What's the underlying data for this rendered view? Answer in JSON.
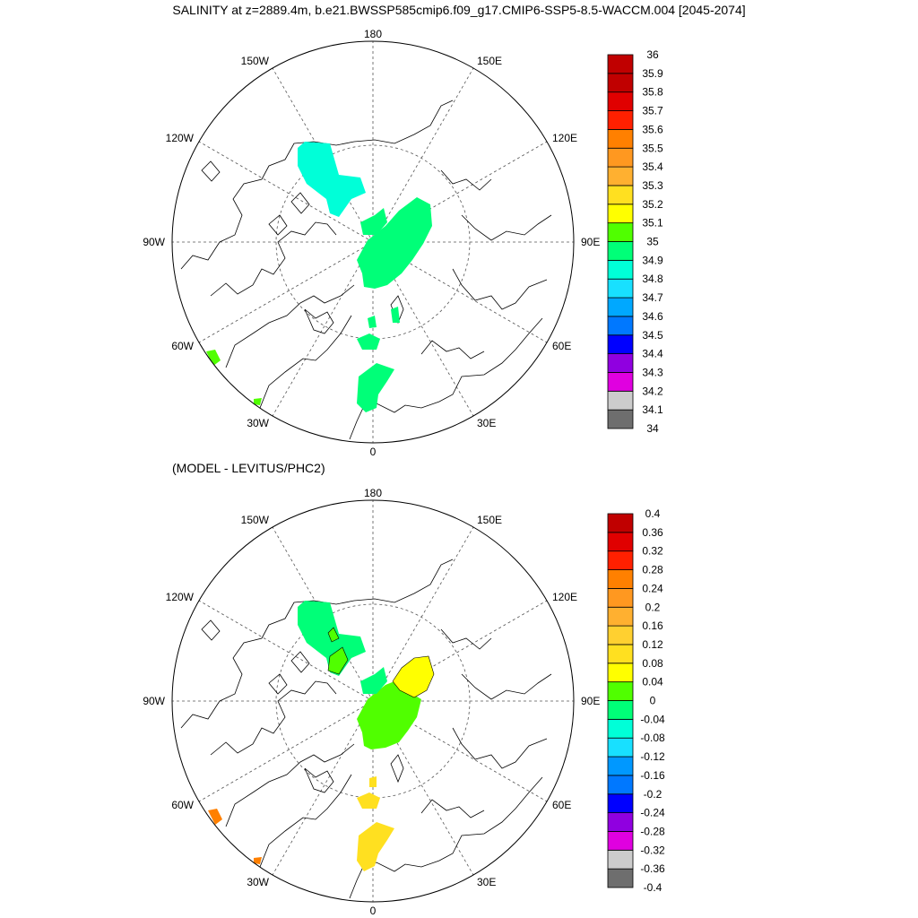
{
  "title": "SALINITY at z=2889.4m, b.e21.BWSSP585cmip6.f09_g17.CMIP6-SSP5-8.5-WACCM.004 [2045-2074]",
  "diff_title": "(MODEL - LEVITUS/PHC2)",
  "longitude_labels": {
    "top": "180",
    "bottom": "0",
    "left": "90W",
    "right": "90E",
    "upper_left_1": "150W",
    "upper_left_2": "120W",
    "lower_left_1": "60W",
    "lower_left_2": "30W",
    "upper_right_1": "150E",
    "upper_right_2": "120E",
    "lower_right_1": "60E",
    "lower_right_2": "30E"
  },
  "colors": {
    "palette_top": [
      "#6e6e6e",
      "#cccccc",
      "#e000e0",
      "#9000e0",
      "#0000ff",
      "#0078ff",
      "#00a8ff",
      "#18e0ff",
      "#00ffd8",
      "#00ff78",
      "#50ff00",
      "#ffff00",
      "#ffe020",
      "#ffb030",
      "#ff9820",
      "#ff8000",
      "#ff2000",
      "#e00000",
      "#c00000"
    ],
    "palette_diff": [
      "#6e6e6e",
      "#cccccc",
      "#e000e0",
      "#9000e0",
      "#0000ff",
      "#0078ff",
      "#0098ff",
      "#18e0ff",
      "#00ffd8",
      "#00ff78",
      "#50ff00",
      "#ffff00",
      "#ffe020",
      "#ffd030",
      "#ffb030",
      "#ff9820",
      "#ff8000",
      "#ff2000",
      "#e00000",
      "#c00000"
    ]
  },
  "top_colorbar": [
    "36",
    "35.9",
    "35.8",
    "35.7",
    "35.6",
    "35.5",
    "35.4",
    "35.3",
    "35.2",
    "35.1",
    "35",
    "34.9",
    "34.8",
    "34.7",
    "34.6",
    "34.5",
    "34.4",
    "34.3",
    "34.2",
    "34.1",
    "34"
  ],
  "diff_colorbar": [
    "0.4",
    "0.36",
    "0.32",
    "0.28",
    "0.24",
    "0.2",
    "0.16",
    "0.12",
    "0.08",
    "0.04",
    "0",
    "-0.04",
    "-0.08",
    "-0.12",
    "-0.16",
    "-0.2",
    "-0.24",
    "-0.28",
    "-0.32",
    "-0.36",
    "-0.4"
  ]
}
